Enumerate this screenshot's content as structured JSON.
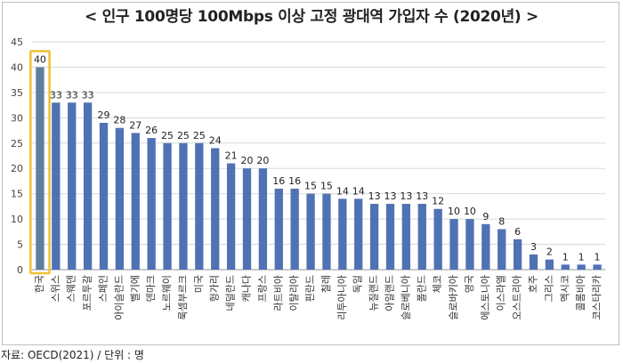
{
  "title": "< 인구 100명당 100Mbps 이상 고정 광대역 가입자 수 (2020년) >",
  "source": "자료: OECD(2021) / 단위 : 명",
  "chart_data": {
    "type": "bar",
    "title": "< 인구 100명당 100Mbps 이상 고정 광대역 가입자 수 (2020년) >",
    "ylim": [
      0,
      45
    ],
    "yticks": [
      0,
      5,
      10,
      15,
      20,
      25,
      30,
      35,
      40,
      45
    ],
    "grid": true,
    "bar_color": "#4f72b5",
    "highlight_color": "#5f7fa0",
    "highlight_border": "#f0c030",
    "highlight_index": 0,
    "categories": [
      "한국",
      "스위스",
      "스웨덴",
      "포르투갈",
      "스페인",
      "아이슬란드",
      "벨기에",
      "덴마크",
      "노르웨이",
      "룩셈부르크",
      "미국",
      "헝가리",
      "네덜란드",
      "캐나다",
      "프랑스",
      "라트비아",
      "이탈리아",
      "핀란드",
      "칠레",
      "리투아니아",
      "독일",
      "뉴질랜드",
      "아일랜드",
      "슬로베니아",
      "폴란드",
      "체코",
      "슬로바키아",
      "영국",
      "에스토니아",
      "이스라엘",
      "오스트리아",
      "호주",
      "그리스",
      "멕시코",
      "콜롬비아",
      "코스타리카"
    ],
    "values": [
      40,
      33,
      33,
      33,
      29,
      28,
      27,
      26,
      25,
      25,
      25,
      24,
      21,
      20,
      20,
      16,
      16,
      15,
      15,
      14,
      14,
      13,
      13,
      13,
      13,
      12,
      10,
      10,
      9,
      8,
      6,
      3,
      2,
      1,
      1,
      1
    ]
  }
}
